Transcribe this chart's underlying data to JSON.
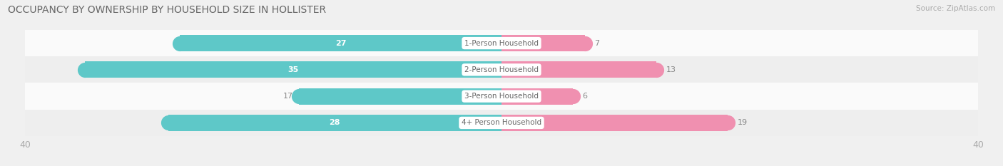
{
  "title": "OCCUPANCY BY OWNERSHIP BY HOUSEHOLD SIZE IN HOLLISTER",
  "source": "Source: ZipAtlas.com",
  "categories": [
    "1-Person Household",
    "2-Person Household",
    "3-Person Household",
    "4+ Person Household"
  ],
  "owner_values": [
    27,
    35,
    17,
    28
  ],
  "renter_values": [
    7,
    13,
    6,
    19
  ],
  "owner_color": "#5ec8c8",
  "renter_color": "#f090b0",
  "axis_max": 40,
  "background_color": "#f0f0f0",
  "row_colors": [
    "#fafafa",
    "#eeeeee",
    "#fafafa",
    "#eeeeee"
  ],
  "title_color": "#666666",
  "source_color": "#aaaaaa",
  "tick_color": "#aaaaaa",
  "value_inside_color": "#ffffff",
  "value_outside_color": "#888888",
  "category_label_color": "#666666",
  "owner_inside_threshold": 20,
  "bar_height": 0.62,
  "title_fontsize": 10,
  "source_fontsize": 7.5,
  "tick_fontsize": 9,
  "bar_label_fontsize": 8,
  "cat_label_fontsize": 7.5,
  "legend_fontsize": 8.5
}
